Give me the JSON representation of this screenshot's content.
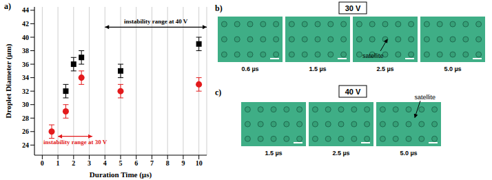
{
  "chart_data": {
    "type": "scatter",
    "panel_label": "a)",
    "x_label": "Duration Time (µs)",
    "y_label": "Droplet Diameter (µm)",
    "x": [
      0.6,
      1.5,
      2,
      2.5,
      5,
      10
    ],
    "xlim": [
      -0.5,
      10.5
    ],
    "xticks": [
      0,
      1,
      2,
      3,
      4,
      5,
      6,
      7,
      8,
      9,
      10
    ],
    "ylim": [
      22.5,
      44.5
    ],
    "yticks": [
      24,
      26,
      28,
      30,
      32,
      34,
      36,
      38,
      40,
      42,
      44
    ],
    "grid": true,
    "series": [
      {
        "color": "#000000",
        "marker": "square",
        "values": [
          null,
          32,
          36,
          37,
          35,
          39
        ],
        "errors": [
          null,
          1,
          1,
          1,
          1,
          1
        ]
      },
      {
        "color": "#e31a1c",
        "marker": "circle",
        "values": [
          26,
          29,
          null,
          34,
          32,
          33
        ],
        "errors": [
          1,
          1,
          null,
          1,
          1,
          1
        ]
      }
    ],
    "annotations": [
      {
        "text": "instability range at 40 V",
        "color": "#000000",
        "range": [
          4,
          10.5
        ],
        "y": 41.5
      },
      {
        "text": "instability range at 30 V",
        "color": "#e31a1c",
        "range": [
          1,
          3.2
        ],
        "y": 25.3
      }
    ]
  },
  "panels": [
    {
      "label": "b)",
      "voltage": "30 V",
      "captions": [
        "0.6 µs",
        "1.5 µs",
        "2.5 µs",
        "5.0 µs"
      ],
      "satellite": {
        "text": "satellite",
        "image": 2
      }
    },
    {
      "label": "c)",
      "voltage": "40 V",
      "captions": [
        "1.5 µs",
        "2.5 µs",
        "5.0 µs"
      ],
      "satellite": {
        "text": "satellite",
        "image": 2
      }
    }
  ]
}
